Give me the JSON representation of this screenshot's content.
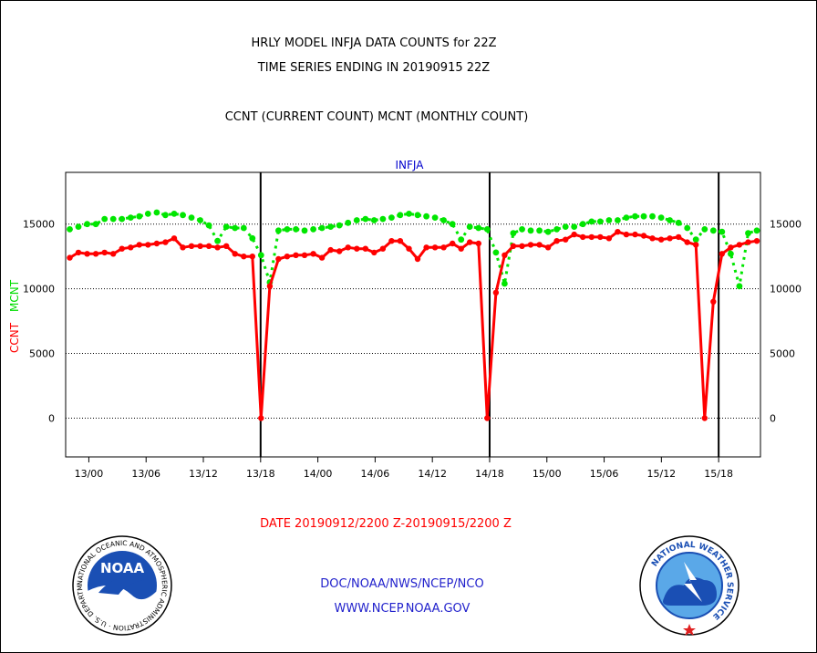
{
  "header": {
    "title_line1": "HRLY MODEL INFJA DATA COUNTS for 22Z",
    "title_line2": "TIME SERIES ENDING IN 20190915 22Z",
    "subtitle": "CCNT (CURRENT COUNT) MCNT (MONTHLY COUNT)"
  },
  "footer": {
    "date_range": "DATE 20190912/2200 Z-20190915/2200 Z",
    "org_line": "DOC/NOAA/NWS/NCEP/NCO",
    "url_line": "WWW.NCEP.NOAA.GOV"
  },
  "logos": {
    "noaa_text": "NOAA",
    "noaa_ring_text": "NATIONAL OCEANIC AND ATMOSPHERIC ADMINISTRATION · U.S. DEPARTMENT OF COMMERCE ·",
    "nws_ring_text": "NATIONAL WEATHER SERVICE"
  },
  "colors": {
    "ccnt": "#ff0000",
    "mcnt": "#00e600",
    "panel_label": "#0000cc",
    "footer_text": "#2222cc"
  },
  "chart_data": {
    "type": "line",
    "title": "INFJA",
    "ylabel_ccnt": "CCNT",
    "ylabel_mcnt": "MCNT",
    "ylim": [
      -3000,
      19000
    ],
    "yticks": [
      0,
      5000,
      10000,
      15000
    ],
    "ytick_labels": [
      "0",
      "5000",
      "10000",
      "15000"
    ],
    "x_start": "2019-09-12 22:00",
    "x_end": "2019-09-15 22:00",
    "x_tick_labels": [
      "13/00",
      "13/06",
      "13/12",
      "13/18",
      "14/00",
      "14/06",
      "14/12",
      "14/18",
      "15/00",
      "15/06",
      "15/12",
      "15/18"
    ],
    "day_separators": [
      "13/18",
      "14/18",
      "15/18"
    ],
    "grid": "horizontal dotted at y ticks",
    "series": [
      {
        "name": "CCNT",
        "style": "solid",
        "values": [
          12400,
          12800,
          12700,
          12700,
          12800,
          12700,
          13100,
          13200,
          13400,
          13400,
          13500,
          13600,
          13900,
          13200,
          13300,
          13300,
          13300,
          13200,
          13300,
          12700,
          12500,
          12500,
          0,
          10200,
          12300,
          12500,
          12600,
          12600,
          12700,
          12400,
          13000,
          12900,
          13200,
          13100,
          13100,
          12800,
          13100,
          13700,
          13700,
          13100,
          12300,
          13200,
          13200,
          13200,
          13500,
          13100,
          13600,
          13500,
          0,
          9700,
          12600,
          13300,
          13300,
          13400,
          13400,
          13200,
          13700,
          13800,
          14200,
          14000,
          14000,
          14000,
          13900,
          14400,
          14200,
          14200,
          14100,
          13900,
          13800,
          13900,
          14000,
          13600,
          13400,
          0,
          9000,
          12700,
          13200,
          13400,
          13600,
          13700
        ]
      },
      {
        "name": "MCNT",
        "style": "dotted",
        "values": [
          14600,
          14800,
          15000,
          15000,
          15400,
          15400,
          15400,
          15500,
          15600,
          15800,
          15900,
          15700,
          15800,
          15700,
          15500,
          15300,
          14900,
          13700,
          14800,
          14700,
          14700,
          13900,
          12600,
          10500,
          14500,
          14600,
          14600,
          14500,
          14600,
          14700,
          14800,
          14900,
          15100,
          15300,
          15400,
          15300,
          15400,
          15500,
          15700,
          15800,
          15700,
          15600,
          15500,
          15300,
          15000,
          13800,
          14800,
          14700,
          14600,
          12800,
          10400,
          14300,
          14600,
          14500,
          14500,
          14400,
          14600,
          14800,
          14800,
          15000,
          15200,
          15200,
          15300,
          15300,
          15500,
          15600,
          15600,
          15600,
          15500,
          15300,
          15100,
          14700,
          13800,
          14600,
          14500,
          14400,
          12700,
          10200,
          14300,
          14500
        ]
      }
    ]
  }
}
